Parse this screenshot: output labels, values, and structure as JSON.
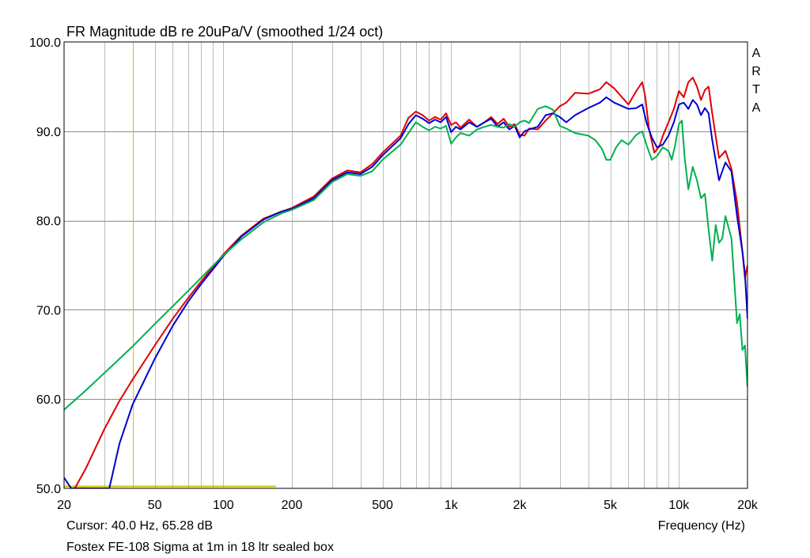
{
  "chart_data": {
    "type": "line",
    "title": "FR Magnitude dB re 20uPa/V (smoothed 1/24 oct)",
    "xlabel": "Frequency (Hz)",
    "ylabel": "",
    "x_scale": "log",
    "xlim": [
      20,
      20000
    ],
    "ylim": [
      50,
      100
    ],
    "grid": true,
    "x_ticks": [
      {
        "value": 20,
        "label": "20"
      },
      {
        "value": 50,
        "label": "50"
      },
      {
        "value": 100,
        "label": "100"
      },
      {
        "value": 200,
        "label": "200"
      },
      {
        "value": 500,
        "label": "500"
      },
      {
        "value": 1000,
        "label": "1k"
      },
      {
        "value": 2000,
        "label": "2k"
      },
      {
        "value": 5000,
        "label": "5k"
      },
      {
        "value": 10000,
        "label": "10k"
      },
      {
        "value": 20000,
        "label": "20k"
      }
    ],
    "y_ticks": [
      {
        "value": 50,
        "label": "50.0"
      },
      {
        "value": 60,
        "label": "60.0"
      },
      {
        "value": 70,
        "label": "70.0"
      },
      {
        "value": 80,
        "label": "80.0"
      },
      {
        "value": 90,
        "label": "90.0"
      },
      {
        "value": 100,
        "label": "100.0"
      }
    ],
    "cursor": {
      "frequency": 40.0,
      "level": 65.28,
      "to_frequency": 170
    },
    "series": [
      {
        "color": "#e00000",
        "points": [
          [
            22.3,
            50
          ],
          [
            25,
            52.3
          ],
          [
            30,
            56.6
          ],
          [
            35,
            59.8
          ],
          [
            40,
            62.2
          ],
          [
            50,
            66
          ],
          [
            60,
            69
          ],
          [
            70,
            71.3
          ],
          [
            80,
            73.2
          ],
          [
            100,
            76.2
          ],
          [
            120,
            78.3
          ],
          [
            150,
            80.2
          ],
          [
            180,
            81
          ],
          [
            200,
            81.4
          ],
          [
            250,
            82.7
          ],
          [
            300,
            84.7
          ],
          [
            350,
            85.6
          ],
          [
            400,
            85.4
          ],
          [
            450,
            86.3
          ],
          [
            500,
            87.6
          ],
          [
            600,
            89.5
          ],
          [
            650,
            91.5
          ],
          [
            700,
            92.2
          ],
          [
            750,
            91.8
          ],
          [
            800,
            91.2
          ],
          [
            850,
            91.6
          ],
          [
            900,
            91.3
          ],
          [
            950,
            92
          ],
          [
            1000,
            90.7
          ],
          [
            1050,
            91
          ],
          [
            1100,
            90.4
          ],
          [
            1200,
            91.3
          ],
          [
            1300,
            90.5
          ],
          [
            1400,
            91
          ],
          [
            1500,
            91.6
          ],
          [
            1600,
            90.8
          ],
          [
            1700,
            91.4
          ],
          [
            1800,
            90.5
          ],
          [
            1900,
            90.8
          ],
          [
            2000,
            89.6
          ],
          [
            2100,
            89.5
          ],
          [
            2200,
            90.3
          ],
          [
            2400,
            90.2
          ],
          [
            2600,
            91.2
          ],
          [
            2800,
            92
          ],
          [
            3000,
            92.8
          ],
          [
            3200,
            93.2
          ],
          [
            3500,
            94.3
          ],
          [
            4000,
            94.2
          ],
          [
            4500,
            94.7
          ],
          [
            4800,
            95.5
          ],
          [
            5200,
            94.8
          ],
          [
            6000,
            93
          ],
          [
            6500,
            94.5
          ],
          [
            6900,
            95.5
          ],
          [
            7100,
            94
          ],
          [
            7400,
            90.2
          ],
          [
            7800,
            87.6
          ],
          [
            8200,
            88.3
          ],
          [
            8500,
            89.5
          ],
          [
            9000,
            91
          ],
          [
            9500,
            92.5
          ],
          [
            10000,
            94.5
          ],
          [
            10500,
            93.8
          ],
          [
            11000,
            95.5
          ],
          [
            11500,
            96
          ],
          [
            12000,
            95
          ],
          [
            12500,
            93.5
          ],
          [
            13000,
            94.6
          ],
          [
            13500,
            95
          ],
          [
            14000,
            92
          ],
          [
            15000,
            87
          ],
          [
            16000,
            87.8
          ],
          [
            17000,
            85.8
          ],
          [
            18000,
            82
          ],
          [
            19000,
            76.5
          ],
          [
            19500,
            73.5
          ],
          [
            20000,
            75
          ]
        ]
      },
      {
        "color": "#0000d0",
        "points": [
          [
            20,
            51.2
          ],
          [
            21.5,
            50
          ],
          [
            31.6,
            50
          ],
          [
            35,
            55
          ],
          [
            40,
            59.4
          ],
          [
            50,
            64.5
          ],
          [
            60,
            68.2
          ],
          [
            70,
            70.9
          ],
          [
            80,
            72.9
          ],
          [
            100,
            76
          ],
          [
            120,
            78.2
          ],
          [
            150,
            80.1
          ],
          [
            180,
            81
          ],
          [
            200,
            81.3
          ],
          [
            250,
            82.5
          ],
          [
            300,
            84.5
          ],
          [
            350,
            85.4
          ],
          [
            400,
            85.2
          ],
          [
            450,
            86
          ],
          [
            500,
            87.3
          ],
          [
            600,
            89.2
          ],
          [
            650,
            90.8
          ],
          [
            700,
            91.8
          ],
          [
            750,
            91.4
          ],
          [
            800,
            90.9
          ],
          [
            850,
            91.3
          ],
          [
            900,
            91
          ],
          [
            950,
            91.6
          ],
          [
            1000,
            89.9
          ],
          [
            1050,
            90.5
          ],
          [
            1100,
            90.2
          ],
          [
            1200,
            91
          ],
          [
            1300,
            90.5
          ],
          [
            1400,
            91
          ],
          [
            1500,
            91.4
          ],
          [
            1600,
            90.5
          ],
          [
            1700,
            91
          ],
          [
            1800,
            90.2
          ],
          [
            1900,
            90.6
          ],
          [
            2000,
            89.3
          ],
          [
            2100,
            90
          ],
          [
            2200,
            90.2
          ],
          [
            2400,
            90.5
          ],
          [
            2600,
            91.8
          ],
          [
            2800,
            92
          ],
          [
            3000,
            91.6
          ],
          [
            3200,
            91
          ],
          [
            3500,
            91.8
          ],
          [
            4000,
            92.6
          ],
          [
            4500,
            93.2
          ],
          [
            4800,
            93.8
          ],
          [
            5200,
            93.2
          ],
          [
            6000,
            92.5
          ],
          [
            6500,
            92.6
          ],
          [
            6900,
            93
          ],
          [
            7200,
            91
          ],
          [
            7600,
            89.3
          ],
          [
            8000,
            88.2
          ],
          [
            8500,
            88.5
          ],
          [
            9000,
            89.5
          ],
          [
            9500,
            91
          ],
          [
            10000,
            93
          ],
          [
            10500,
            93.2
          ],
          [
            11000,
            92.5
          ],
          [
            11500,
            93.5
          ],
          [
            12000,
            93
          ],
          [
            12500,
            91.8
          ],
          [
            13000,
            92.6
          ],
          [
            13500,
            92
          ],
          [
            14000,
            89
          ],
          [
            15000,
            84.5
          ],
          [
            16000,
            86.5
          ],
          [
            17000,
            85.5
          ],
          [
            18000,
            80.5
          ],
          [
            19000,
            76.5
          ],
          [
            19500,
            74
          ],
          [
            20000,
            69
          ]
        ]
      },
      {
        "color": "#00b050",
        "points": [
          [
            20,
            58.8
          ],
          [
            25,
            61
          ],
          [
            30,
            62.9
          ],
          [
            35,
            64.5
          ],
          [
            40,
            65.9
          ],
          [
            50,
            68.4
          ],
          [
            60,
            70.4
          ],
          [
            70,
            72.1
          ],
          [
            80,
            73.6
          ],
          [
            100,
            76.1
          ],
          [
            120,
            77.9
          ],
          [
            150,
            79.8
          ],
          [
            180,
            80.8
          ],
          [
            200,
            81.2
          ],
          [
            250,
            82.3
          ],
          [
            300,
            84.3
          ],
          [
            350,
            85.2
          ],
          [
            400,
            85
          ],
          [
            450,
            85.5
          ],
          [
            500,
            86.8
          ],
          [
            600,
            88.5
          ],
          [
            650,
            89.8
          ],
          [
            700,
            91
          ],
          [
            750,
            90.5
          ],
          [
            800,
            90.1
          ],
          [
            850,
            90.5
          ],
          [
            900,
            90.3
          ],
          [
            950,
            90.6
          ],
          [
            1000,
            88.6
          ],
          [
            1050,
            89.3
          ],
          [
            1100,
            89.8
          ],
          [
            1200,
            89.5
          ],
          [
            1300,
            90.2
          ],
          [
            1400,
            90.5
          ],
          [
            1500,
            90.7
          ],
          [
            1600,
            90.5
          ],
          [
            1700,
            90.4
          ],
          [
            1800,
            90.8
          ],
          [
            1900,
            90.5
          ],
          [
            2000,
            91
          ],
          [
            2100,
            91.2
          ],
          [
            2200,
            90.9
          ],
          [
            2400,
            92.5
          ],
          [
            2600,
            92.8
          ],
          [
            2800,
            92.4
          ],
          [
            3000,
            90.6
          ],
          [
            3200,
            90.3
          ],
          [
            3500,
            89.8
          ],
          [
            4000,
            89.5
          ],
          [
            4300,
            89
          ],
          [
            4600,
            88
          ],
          [
            4800,
            86.8
          ],
          [
            5000,
            86.8
          ],
          [
            5300,
            88.2
          ],
          [
            5600,
            89
          ],
          [
            6000,
            88.5
          ],
          [
            6500,
            89.6
          ],
          [
            6900,
            90
          ],
          [
            7200,
            88.5
          ],
          [
            7600,
            86.8
          ],
          [
            8000,
            87.2
          ],
          [
            8500,
            88.2
          ],
          [
            9000,
            87.8
          ],
          [
            9300,
            86.8
          ],
          [
            9600,
            88.3
          ],
          [
            10000,
            90.8
          ],
          [
            10300,
            91.2
          ],
          [
            10600,
            87
          ],
          [
            11000,
            83.5
          ],
          [
            11500,
            86
          ],
          [
            12000,
            84.5
          ],
          [
            12500,
            82.5
          ],
          [
            13000,
            83
          ],
          [
            13500,
            79
          ],
          [
            14000,
            75.5
          ],
          [
            14500,
            79.5
          ],
          [
            15000,
            77.5
          ],
          [
            15500,
            78
          ],
          [
            16000,
            80.5
          ],
          [
            17000,
            78
          ],
          [
            18000,
            68.5
          ],
          [
            18500,
            69.5
          ],
          [
            19000,
            65.5
          ],
          [
            19500,
            66
          ],
          [
            20000,
            61.3
          ]
        ]
      }
    ]
  },
  "side_label": [
    "A",
    "R",
    "T",
    "A"
  ],
  "cursor_label": "Cursor: 40.0 Hz, 65.28 dB",
  "caption": "Fostex FE-108 Sigma at 1m in 18 ltr sealed box",
  "colors": {
    "grid": "#bdbdbd",
    "cursor": "#c8c800",
    "frame": "#000000"
  }
}
